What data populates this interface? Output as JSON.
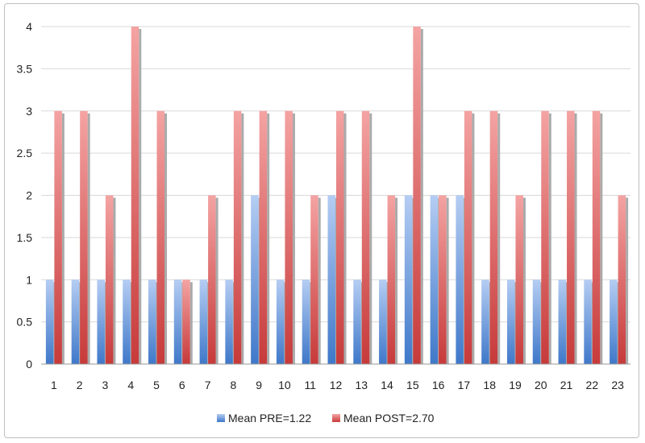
{
  "chart_data": {
    "type": "bar",
    "categories": [
      "1",
      "2",
      "3",
      "4",
      "5",
      "6",
      "7",
      "8",
      "9",
      "10",
      "11",
      "12",
      "13",
      "14",
      "15",
      "16",
      "17",
      "18",
      "19",
      "20",
      "21",
      "22",
      "23"
    ],
    "series": [
      {
        "name": "Mean PRE=1.22",
        "color": "#5b8fd9",
        "values": [
          1,
          1,
          1,
          1,
          1,
          1,
          1,
          1,
          2,
          1,
          1,
          2,
          1,
          1,
          2,
          2,
          2,
          1,
          1,
          1,
          1,
          1,
          1
        ]
      },
      {
        "name": "Mean POST=2.70",
        "color": "#e06666",
        "values": [
          3,
          3,
          2,
          4,
          3,
          1,
          2,
          3,
          3,
          3,
          2,
          3,
          3,
          2,
          4,
          2,
          3,
          3,
          2,
          3,
          3,
          3,
          2
        ]
      }
    ],
    "title": "",
    "xlabel": "",
    "ylabel": "",
    "ylim": [
      0,
      4
    ],
    "yticks": [
      "0",
      "0.5",
      "1",
      "1.5",
      "2",
      "2.5",
      "3",
      "3.5",
      "4"
    ],
    "grid": true,
    "legend": "bottom"
  }
}
